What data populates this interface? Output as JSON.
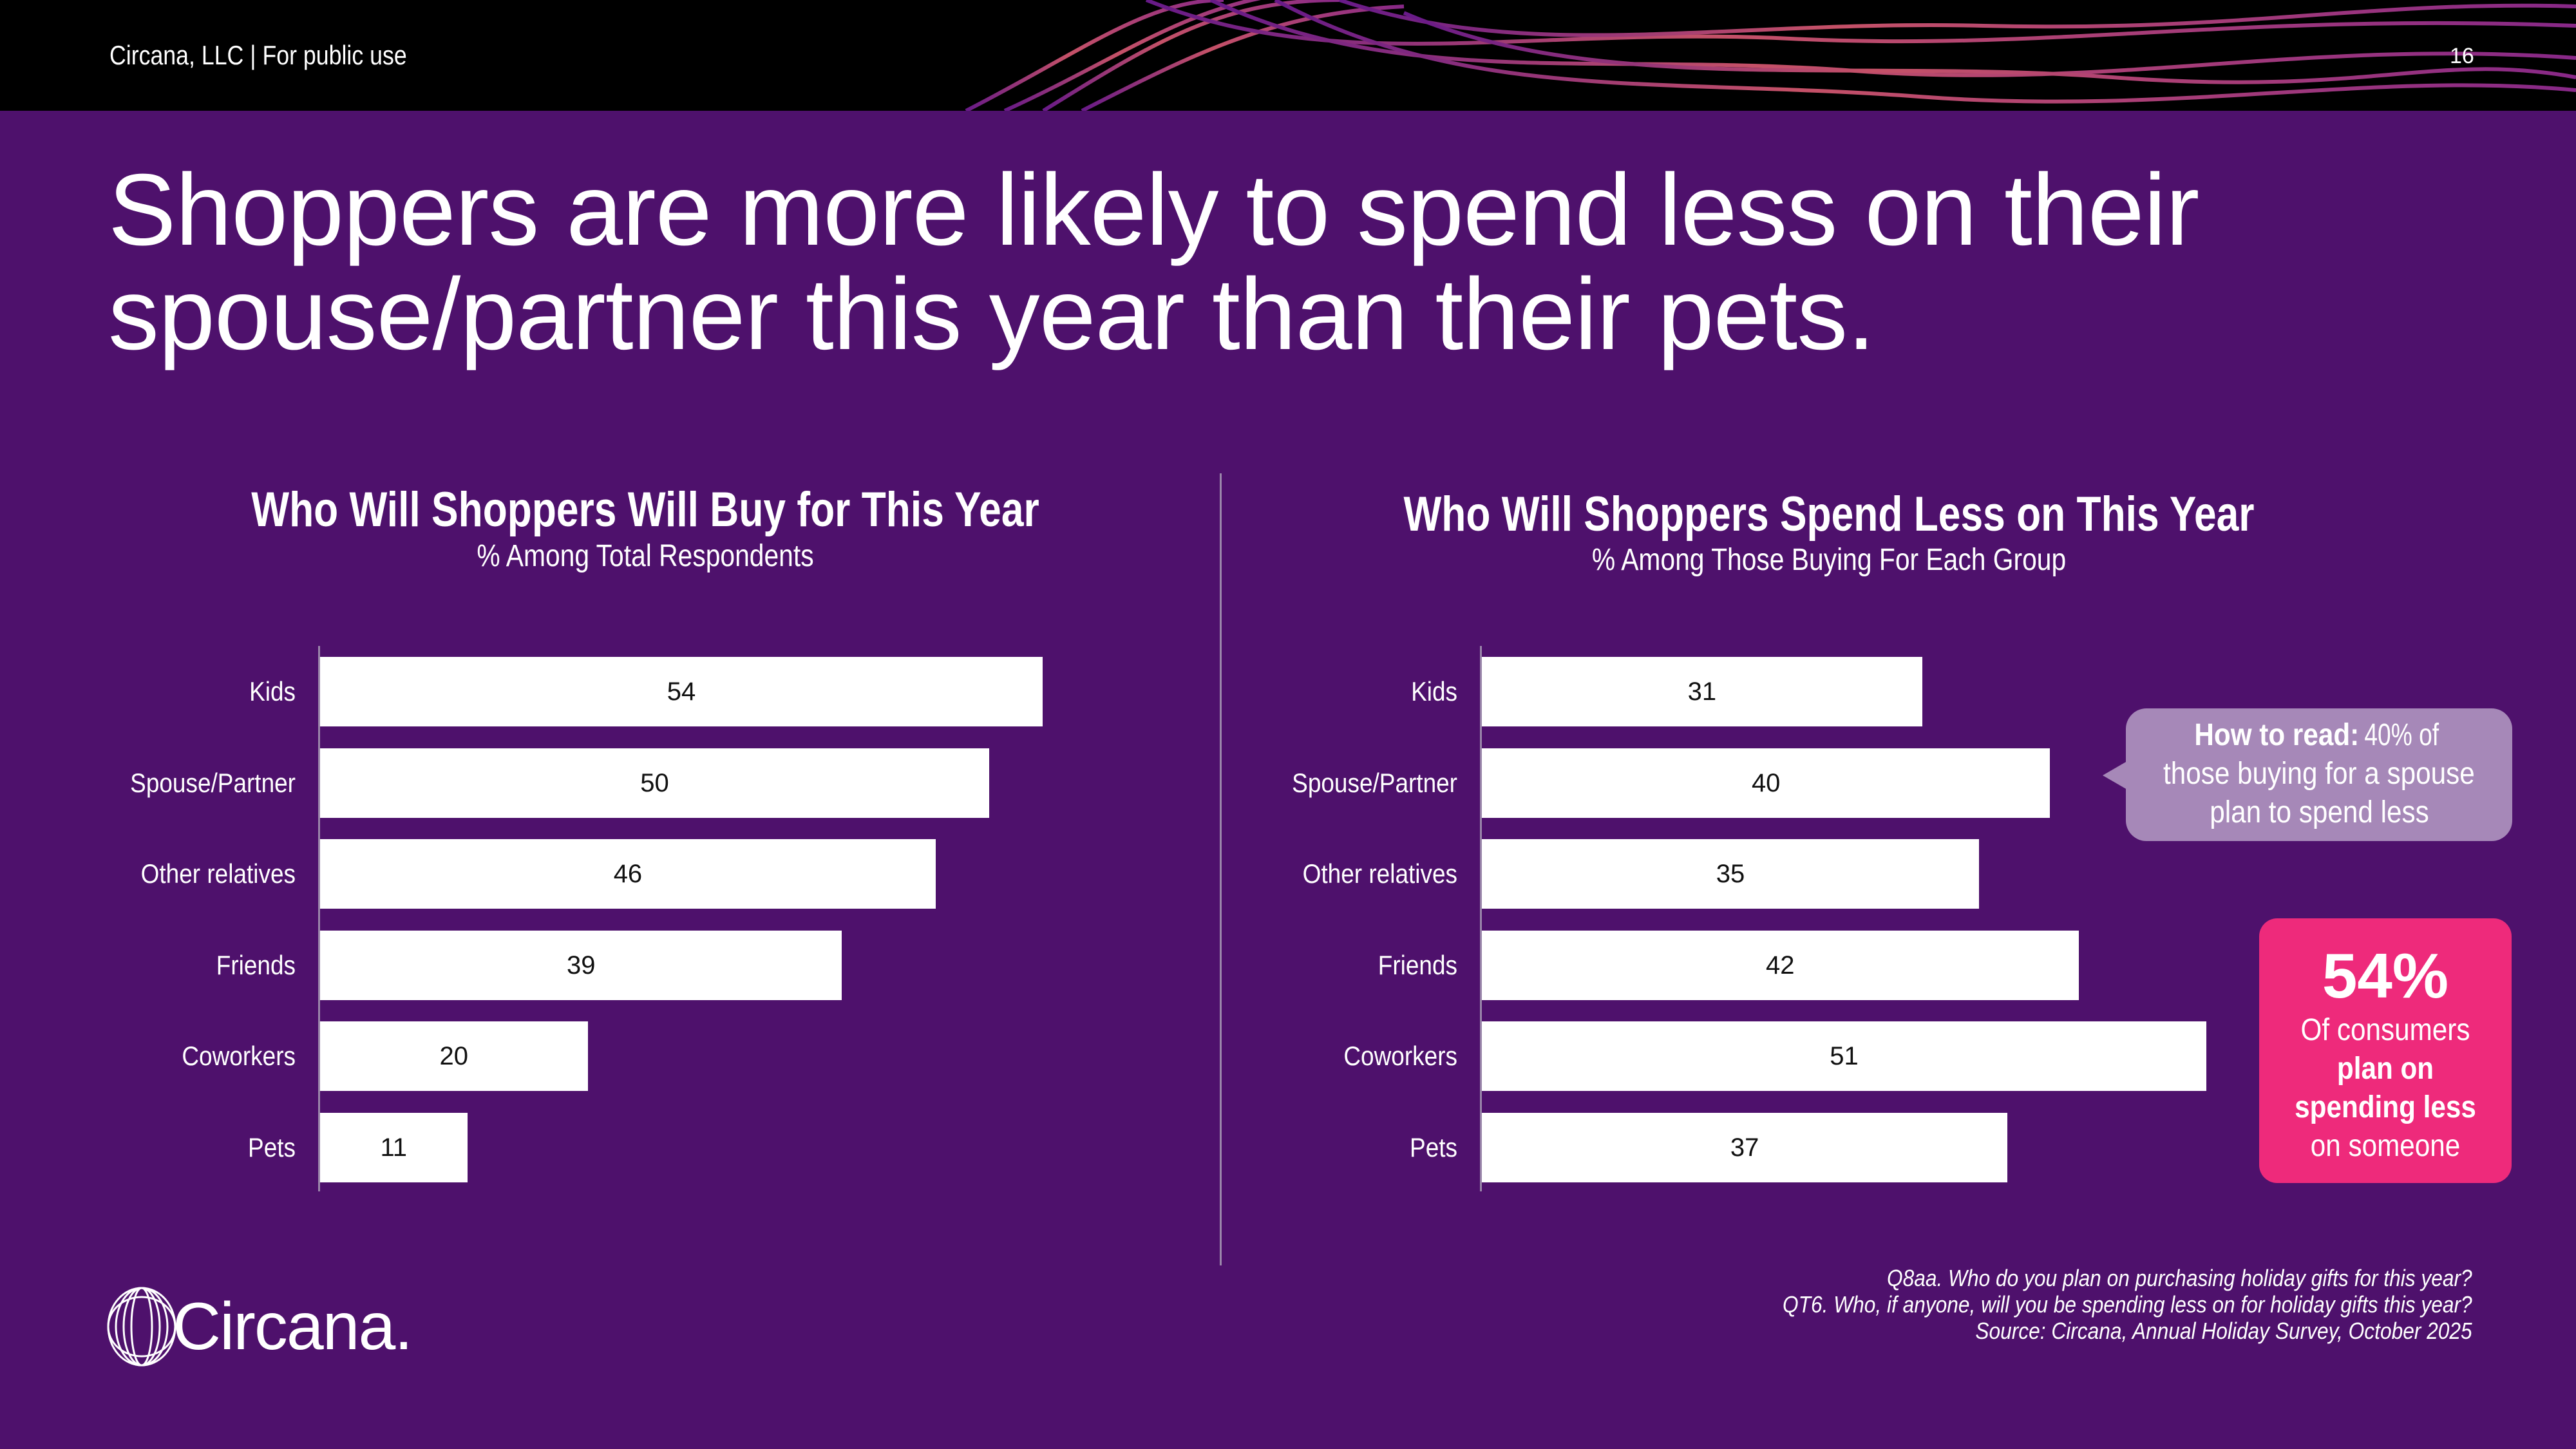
{
  "header": {
    "text": "Circana, LLC |  For public use",
    "page_number": "16"
  },
  "title_lines": [
    "Shoppers are more likely to spend less on their",
    "spouse/partner this year than their pets."
  ],
  "colors": {
    "background": "#4e116c",
    "bar": "#ffffff",
    "callout": "#a688b8",
    "stat_box": "#ee2a7b"
  },
  "chart_data": [
    {
      "type": "bar",
      "orientation": "horizontal",
      "title": "Who Will Shoppers Will Buy for This Year",
      "subtitle": "% Among Total Respondents",
      "categories": [
        "Kids",
        "Spouse/Partner",
        "Other relatives",
        "Friends",
        "Coworkers",
        "Pets"
      ],
      "values": [
        54,
        50,
        46,
        39,
        20,
        11
      ],
      "xlim": [
        0,
        54
      ],
      "grid": false
    },
    {
      "type": "bar",
      "orientation": "horizontal",
      "title": "Who Will Shoppers Spend Less on This Year",
      "subtitle": "% Among  Those Buying For Each Group",
      "categories": [
        "Kids",
        "Spouse/Partner",
        "Other relatives",
        "Friends",
        "Coworkers",
        "Pets"
      ],
      "values": [
        31,
        40,
        35,
        42,
        51,
        37
      ],
      "xlim": [
        0,
        51
      ],
      "grid": false
    }
  ],
  "callout": {
    "bold": "How to read:",
    "text1": " 40% of",
    "text2": "those buying for a spouse",
    "text3": "plan to spend less"
  },
  "stat": {
    "value": "54%",
    "line1": "Of consumers",
    "line2": "plan on",
    "line3": "spending less",
    "line4": "on someone"
  },
  "footnotes": [
    "Q8aa. Who do you plan on purchasing holiday gifts for this year?",
    "QT6. Who, if anyone, will you be spending less on for holiday gifts this year?",
    "Source: Circana, Annual Holiday Survey, October 2025"
  ],
  "logo": {
    "text": "Circana."
  }
}
